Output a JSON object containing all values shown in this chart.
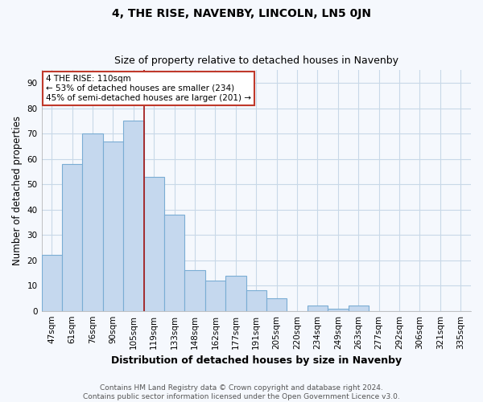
{
  "title": "4, THE RISE, NAVENBY, LINCOLN, LN5 0JN",
  "subtitle": "Size of property relative to detached houses in Navenby",
  "xlabel": "Distribution of detached houses by size in Navenby",
  "ylabel": "Number of detached properties",
  "bar_labels": [
    "47sqm",
    "61sqm",
    "76sqm",
    "90sqm",
    "105sqm",
    "119sqm",
    "133sqm",
    "148sqm",
    "162sqm",
    "177sqm",
    "191sqm",
    "205sqm",
    "220sqm",
    "234sqm",
    "249sqm",
    "263sqm",
    "277sqm",
    "292sqm",
    "306sqm",
    "321sqm",
    "335sqm"
  ],
  "bar_heights": [
    22,
    58,
    70,
    67,
    75,
    53,
    38,
    16,
    12,
    14,
    8,
    5,
    0,
    2,
    1,
    2,
    0,
    0,
    0,
    0,
    0
  ],
  "bar_color": "#c5d8ee",
  "bar_edge_color": "#7aadd4",
  "vline_x": 4.5,
  "vline_color": "#a52020",
  "annotation_line1": "4 THE RISE: 110sqm",
  "annotation_line2": "← 53% of detached houses are smaller (234)",
  "annotation_line3": "45% of semi-detached houses are larger (201) →",
  "annotation_box_color": "#ffffff",
  "annotation_box_edge": "#c0392b",
  "ylim": [
    0,
    95
  ],
  "yticks": [
    0,
    10,
    20,
    30,
    40,
    50,
    60,
    70,
    80,
    90
  ],
  "footnote": "Contains HM Land Registry data © Crown copyright and database right 2024.\nContains public sector information licensed under the Open Government Licence v3.0.",
  "title_fontsize": 10,
  "subtitle_fontsize": 9,
  "xlabel_fontsize": 9,
  "ylabel_fontsize": 8.5,
  "tick_fontsize": 7.5,
  "annotation_fontsize": 7.5,
  "footnote_fontsize": 6.5,
  "background_color": "#f5f8fd",
  "grid_color": "#c8d8e8",
  "bar_width": 1.0
}
